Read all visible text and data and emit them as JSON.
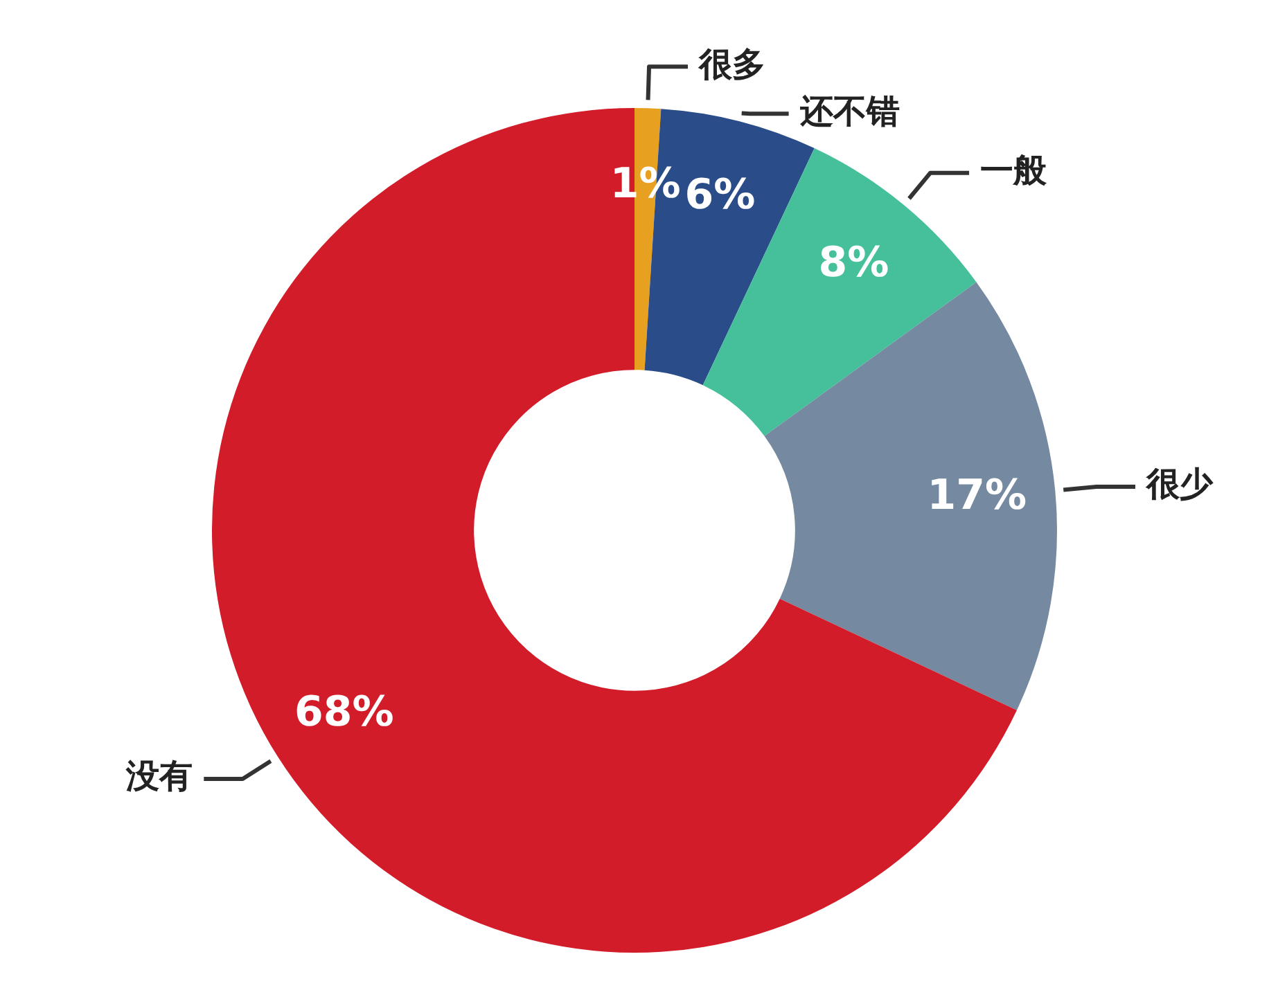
{
  "chart_data": {
    "type": "donut",
    "categories": [
      "很多",
      "还不错",
      "一般",
      "很少",
      "没有"
    ],
    "values": [
      1,
      6,
      8,
      17,
      68
    ],
    "value_labels": [
      "1%",
      "6%",
      "8%",
      "17%",
      "68%"
    ],
    "colors": [
      "#e8a020",
      "#2a4d8a",
      "#45c09a",
      "#7589a0",
      "#d21c2a"
    ],
    "legend": false
  }
}
